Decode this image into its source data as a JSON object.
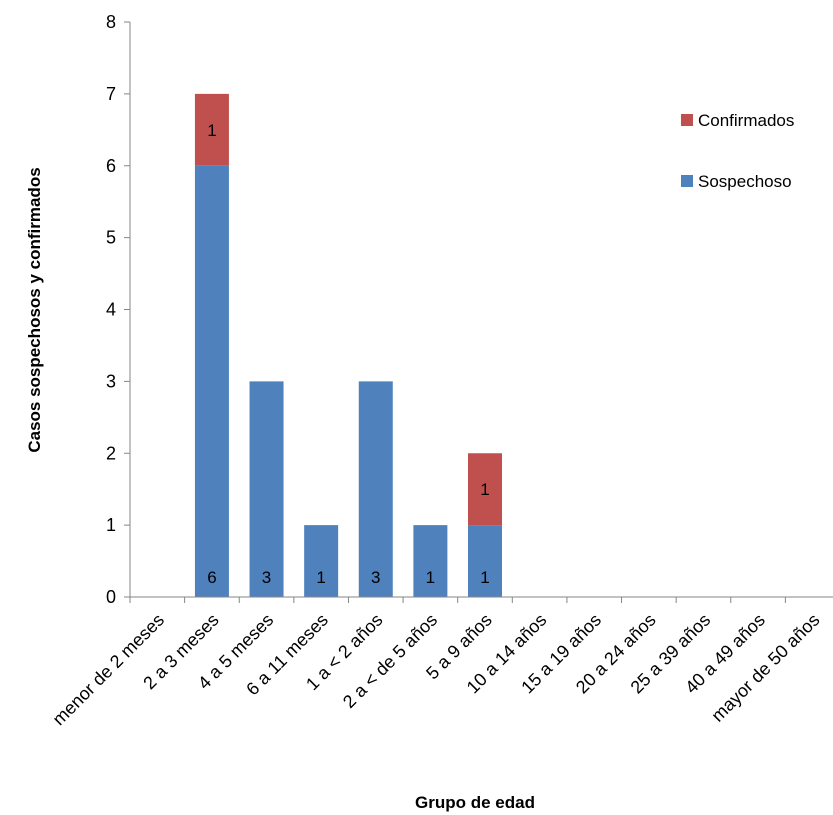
{
  "chart_data": {
    "type": "bar",
    "stacked": true,
    "title": "",
    "xlabel": "Grupo de edad",
    "ylabel": "Casos sospechosos y confirmados",
    "ylim": [
      0,
      8
    ],
    "yticks": [
      0,
      1,
      2,
      3,
      4,
      5,
      6,
      7,
      8
    ],
    "grid": false,
    "legend_position": "right",
    "categories": [
      "menor de 2 meses",
      "2 a 3 meses",
      "4 a 5 meses",
      "6 a 11 meses",
      "1 a < 2 años",
      "2 a < de 5 años",
      "5 a 9 años",
      "10 a 14 años",
      "15 a 19 años",
      "20 a 24 años",
      "25 a 39 años",
      "40 a 49 años",
      "mayor de 50 años"
    ],
    "series": [
      {
        "name": "Sospechoso",
        "color": "#4F81BD",
        "values": [
          0,
          6,
          3,
          1,
          3,
          1,
          1,
          0,
          0,
          0,
          0,
          0,
          0
        ]
      },
      {
        "name": "Confirmados",
        "color": "#C0504D",
        "values": [
          0,
          1,
          0,
          0,
          0,
          0,
          1,
          0,
          0,
          0,
          0,
          0,
          0
        ]
      }
    ],
    "legend_order": [
      "Confirmados",
      "Sospechoso"
    ]
  }
}
